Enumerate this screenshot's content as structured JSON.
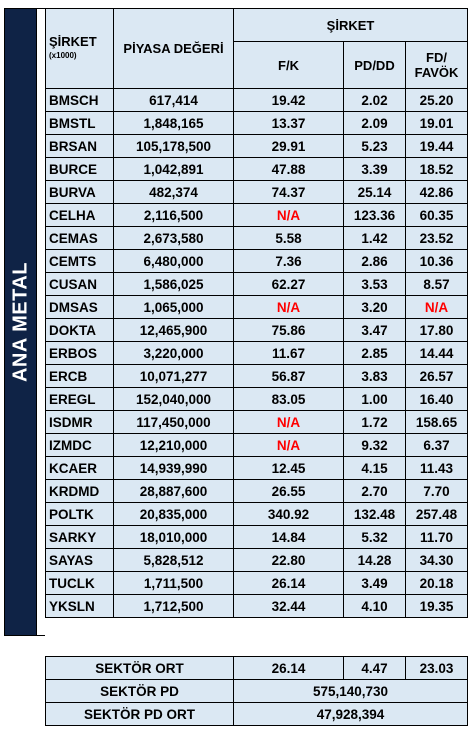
{
  "sidebar_label": "ANA METAL",
  "headers": {
    "ticker": "ŞİRKET",
    "ticker_sub": "(x1000)",
    "market_value": "PİYASA DEĞERİ",
    "group": "ŞİRKET",
    "fk": "F/K",
    "pddd": "PD/DD",
    "fd_line1": "FD/",
    "fd_line2": "FAVÖK"
  },
  "rows": [
    {
      "ticker": "BMSCH",
      "market_value": "617,414",
      "fk": "19.42",
      "pddd": "2.02",
      "fd": "25.20"
    },
    {
      "ticker": "BMSTL",
      "market_value": "1,848,165",
      "fk": "13.37",
      "pddd": "2.09",
      "fd": "19.01"
    },
    {
      "ticker": "BRSAN",
      "market_value": "105,178,500",
      "fk": "29.91",
      "pddd": "5.23",
      "fd": "19.44"
    },
    {
      "ticker": "BURCE",
      "market_value": "1,042,891",
      "fk": "47.88",
      "pddd": "3.39",
      "fd": "18.52"
    },
    {
      "ticker": "BURVA",
      "market_value": "482,374",
      "fk": "74.37",
      "pddd": "25.14",
      "fd": "42.86"
    },
    {
      "ticker": "CELHA",
      "market_value": "2,116,500",
      "fk": "N/A",
      "pddd": "123.36",
      "fd": "60.35"
    },
    {
      "ticker": "CEMAS",
      "market_value": "2,673,580",
      "fk": "5.58",
      "pddd": "1.42",
      "fd": "23.52"
    },
    {
      "ticker": "CEMTS",
      "market_value": "6,480,000",
      "fk": "7.36",
      "pddd": "2.86",
      "fd": "10.36"
    },
    {
      "ticker": "CUSAN",
      "market_value": "1,586,025",
      "fk": "62.27",
      "pddd": "3.53",
      "fd": "8.57"
    },
    {
      "ticker": "DMSAS",
      "market_value": "1,065,000",
      "fk": "N/A",
      "pddd": "3.20",
      "fd": "N/A"
    },
    {
      "ticker": "DOKTA",
      "market_value": "12,465,900",
      "fk": "75.86",
      "pddd": "3.47",
      "fd": "17.80"
    },
    {
      "ticker": "ERBOS",
      "market_value": "3,220,000",
      "fk": "11.67",
      "pddd": "2.85",
      "fd": "14.44"
    },
    {
      "ticker": "ERCB",
      "market_value": "10,071,277",
      "fk": "56.87",
      "pddd": "3.83",
      "fd": "26.57"
    },
    {
      "ticker": "EREGL",
      "market_value": "152,040,000",
      "fk": "83.05",
      "pddd": "1.00",
      "fd": "16.40"
    },
    {
      "ticker": "ISDMR",
      "market_value": "117,450,000",
      "fk": "N/A",
      "pddd": "1.72",
      "fd": "158.65"
    },
    {
      "ticker": "IZMDC",
      "market_value": "12,210,000",
      "fk": "N/A",
      "pddd": "9.32",
      "fd": "6.37"
    },
    {
      "ticker": "KCAER",
      "market_value": "14,939,990",
      "fk": "12.45",
      "pddd": "4.15",
      "fd": "11.43"
    },
    {
      "ticker": "KRDMD",
      "market_value": "28,887,600",
      "fk": "26.55",
      "pddd": "2.70",
      "fd": "7.70"
    },
    {
      "ticker": "POLTK",
      "market_value": "20,835,000",
      "fk": "340.92",
      "pddd": "132.48",
      "fd": "257.48"
    },
    {
      "ticker": "SARKY",
      "market_value": "18,010,000",
      "fk": "14.84",
      "pddd": "5.32",
      "fd": "11.70"
    },
    {
      "ticker": "SAYAS",
      "market_value": "5,828,512",
      "fk": "22.80",
      "pddd": "14.28",
      "fd": "34.30"
    },
    {
      "ticker": "TUCLK",
      "market_value": "1,711,500",
      "fk": "26.14",
      "pddd": "3.49",
      "fd": "20.18"
    },
    {
      "ticker": "YKSLN",
      "market_value": "1,712,500",
      "fk": "32.44",
      "pddd": "4.10",
      "fd": "19.35"
    }
  ],
  "summary": {
    "sector_avg_label": "SEKTÖR ORT",
    "sector_avg_fk": "26.14",
    "sector_avg_pddd": "4.47",
    "sector_avg_fd": "23.03",
    "sector_pd_label": "SEKTÖR PD",
    "sector_pd_value": "575,140,730",
    "sector_pd_avg_label": "SEKTÖR PD ORT",
    "sector_pd_avg_value": "47,928,394"
  },
  "colors": {
    "sidebar_bg": "#0f2346",
    "cell_bg": "#dbe8f3",
    "na_color": "#ff0000"
  }
}
